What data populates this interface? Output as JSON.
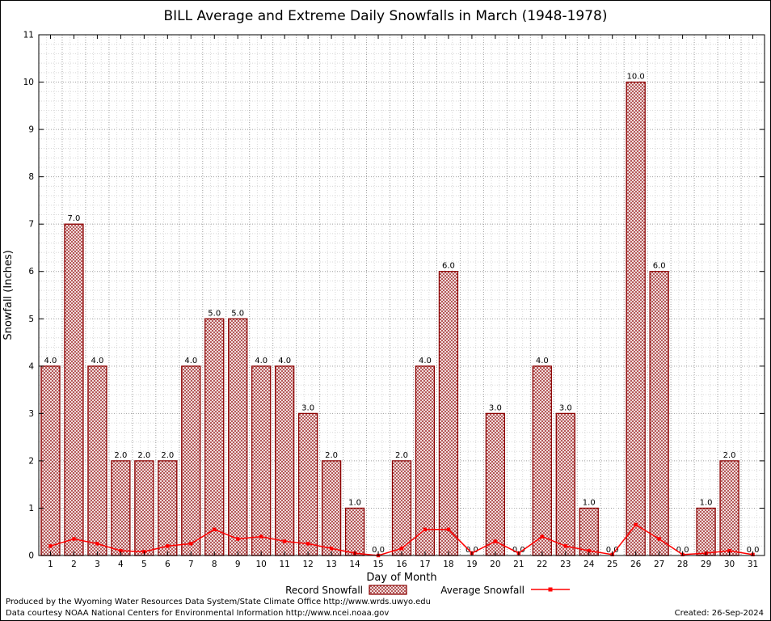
{
  "title": "BILL Average and Extreme Daily Snowfalls in March (1948-1978)",
  "legend": {
    "record_label": "Record Snowfall",
    "average_label": "Average Snowfall"
  },
  "footer": {
    "produced_by": "Produced by the Wyoming Water Resources Data System/State Climate Office http://www.wrds.uwyo.edu",
    "data_courtesy": "Data courtesy NOAA National Centers for Environmental Information http://www.ncei.noaa.gov",
    "created": "Created: 26-Sep-2024"
  },
  "colors": {
    "bar_border": "#8b0000",
    "bar_hatch": "#a73a3a",
    "average_line": "#ff0000",
    "grid_minor": "#d8d8d8",
    "grid_major": "#9e9e9e"
  },
  "chart_data": {
    "type": "bar",
    "title": "BILL Average and Extreme Daily Snowfalls in March (1948-1978)",
    "xlabel": "Day of Month",
    "ylabel": "Snowfall (Inches)",
    "ylim": [
      0,
      11
    ],
    "yticks": [
      0,
      1,
      2,
      3,
      4,
      5,
      6,
      7,
      8,
      9,
      10,
      11
    ],
    "grid": true,
    "legend_position": "bottom",
    "x": [
      1,
      2,
      3,
      4,
      5,
      6,
      7,
      8,
      9,
      10,
      11,
      12,
      13,
      14,
      15,
      16,
      17,
      18,
      19,
      20,
      21,
      22,
      23,
      24,
      25,
      26,
      27,
      28,
      29,
      30,
      31
    ],
    "series": [
      {
        "name": "Record Snowfall",
        "type": "bar",
        "values": [
          4,
          7,
          4,
          2,
          2,
          2,
          4,
          5,
          5,
          4,
          4,
          3,
          2,
          1,
          0,
          2,
          4,
          6,
          0,
          3,
          0,
          4,
          3,
          1,
          0,
          10,
          6,
          0,
          1,
          2,
          0
        ]
      },
      {
        "name": "Average Snowfall",
        "type": "line",
        "values": [
          0.2,
          0.35,
          0.25,
          0.1,
          0.08,
          0.2,
          0.25,
          0.55,
          0.35,
          0.4,
          0.3,
          0.25,
          0.15,
          0.05,
          0,
          0.15,
          0.55,
          0.55,
          0.05,
          0.3,
          0.05,
          0.4,
          0.2,
          0.1,
          0.02,
          0.65,
          0.35,
          0.02,
          0.05,
          0.1,
          0.02
        ]
      }
    ],
    "bar_labels": [
      "4.0",
      "7.0",
      "4.0",
      "2.0",
      "2.0",
      "2.0",
      "4.0",
      "5.0",
      "5.0",
      "4.0",
      "4.0",
      "3.0",
      "2.0",
      "1.0",
      "0.0",
      "2.0",
      "4.0",
      "6.0",
      "0.0",
      "3.0",
      "0.0",
      "4.0",
      "3.0",
      "1.0",
      "0.0",
      "10.0",
      "6.0",
      "0.0",
      "1.0",
      "2.0",
      "0.0"
    ]
  }
}
